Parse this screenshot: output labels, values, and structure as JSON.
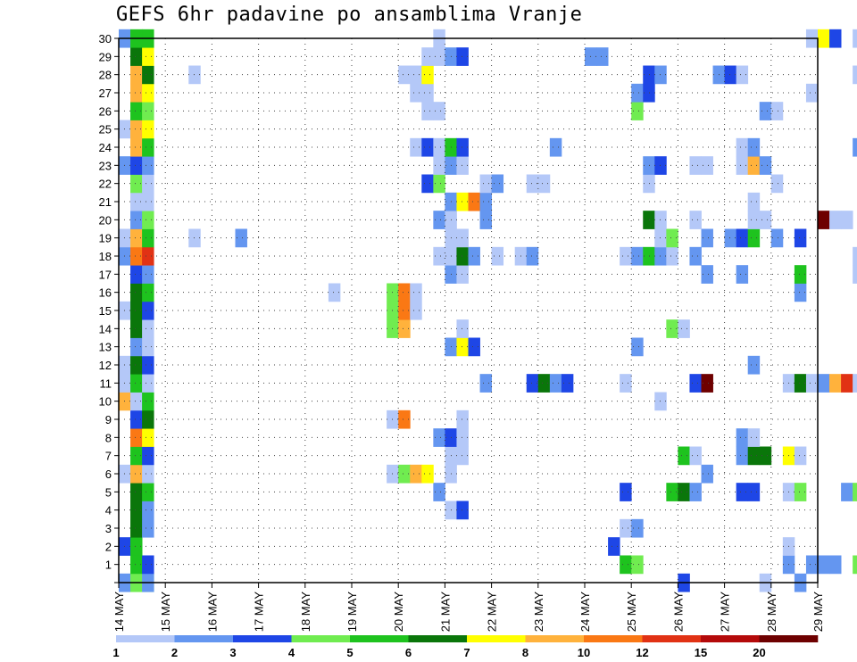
{
  "chart_data": {
    "type": "heatmap",
    "title": "GEFS 6hr padavine po ansamblima Vranje",
    "xlabel": "",
    "ylabel": "",
    "x_ticks": [
      "14 MAY",
      "15 MAY",
      "16 MAY",
      "17 MAY",
      "18 MAY",
      "19 MAY",
      "20 MAY",
      "21 MAY",
      "22 MAY",
      "23 MAY",
      "24 MAY",
      "25 MAY",
      "26 MAY",
      "27 MAY",
      "28 MAY",
      "29 MAY"
    ],
    "y_ticks": [
      "0",
      "1",
      "2",
      "3",
      "4",
      "5",
      "6",
      "7",
      "8",
      "9",
      "10",
      "11",
      "12",
      "13",
      "14",
      "15",
      "16",
      "17",
      "18",
      "19",
      "20",
      "21",
      "22",
      "23",
      "24",
      "25",
      "26",
      "27",
      "28",
      "29",
      "30"
    ],
    "x_range": [
      "14 MAY",
      "29 MAY"
    ],
    "y_range": [
      0,
      30
    ],
    "grid": true,
    "legend_levels": [
      "1",
      "2",
      "3",
      "4",
      "5",
      "6",
      "7",
      "8",
      "10",
      "12",
      "15",
      "20"
    ],
    "legend_colors": [
      "#b4c8f8",
      "#6496f0",
      "#1e46e6",
      "#70ec50",
      "#1ec31e",
      "#0a760a",
      "#ffff00",
      "#ffb23c",
      "#fa7814",
      "#e13214",
      "#b40a0a",
      "#6e0000"
    ],
    "note_cells": "Each cell = [member, column, level index]; column index in 6-hour steps from 14 MAY 06 UTC; level index 1..12 maps to legend_colors.",
    "cells": [
      [
        0,
        0,
        2
      ],
      [
        0,
        1,
        4
      ],
      [
        0,
        2,
        4
      ],
      [
        0,
        2,
        2
      ],
      [
        0,
        48,
        3
      ],
      [
        0,
        55,
        1
      ],
      [
        0,
        58,
        2
      ],
      [
        0,
        71,
        3
      ],
      [
        0,
        72,
        11
      ],
      [
        0,
        75,
        4
      ],
      [
        0,
        76,
        9
      ],
      [
        1,
        1,
        5
      ],
      [
        1,
        2,
        3
      ],
      [
        1,
        43,
        5
      ],
      [
        1,
        44,
        4
      ],
      [
        1,
        57,
        2
      ],
      [
        1,
        59,
        2
      ],
      [
        1,
        60,
        2
      ],
      [
        1,
        61,
        2
      ],
      [
        1,
        63,
        4
      ],
      [
        1,
        64,
        2
      ],
      [
        1,
        65,
        5
      ],
      [
        1,
        66,
        3
      ],
      [
        1,
        67,
        10
      ],
      [
        1,
        68,
        2
      ],
      [
        1,
        71,
        6
      ],
      [
        1,
        73,
        10
      ],
      [
        1,
        74,
        9
      ],
      [
        2,
        0,
        3
      ],
      [
        2,
        1,
        5
      ],
      [
        2,
        42,
        3
      ],
      [
        2,
        57,
        1
      ],
      [
        2,
        67,
        2
      ],
      [
        2,
        74,
        8
      ],
      [
        2,
        75,
        2
      ],
      [
        3,
        1,
        6
      ],
      [
        3,
        2,
        2
      ],
      [
        3,
        43,
        1
      ],
      [
        3,
        44,
        2
      ],
      [
        4,
        1,
        6
      ],
      [
        4,
        2,
        2
      ],
      [
        4,
        28,
        1
      ],
      [
        4,
        29,
        3
      ],
      [
        4,
        73,
        2
      ],
      [
        4,
        74,
        1
      ],
      [
        5,
        1,
        6
      ],
      [
        5,
        2,
        5
      ],
      [
        5,
        27,
        2
      ],
      [
        5,
        43,
        3
      ],
      [
        5,
        47,
        5
      ],
      [
        5,
        48,
        6
      ],
      [
        5,
        49,
        2
      ],
      [
        5,
        53,
        3
      ],
      [
        5,
        54,
        3
      ],
      [
        5,
        57,
        1
      ],
      [
        5,
        58,
        4
      ],
      [
        5,
        62,
        2
      ],
      [
        5,
        63,
        4
      ],
      [
        6,
        0,
        1
      ],
      [
        6,
        1,
        8
      ],
      [
        6,
        2,
        1
      ],
      [
        6,
        23,
        1
      ],
      [
        6,
        24,
        4
      ],
      [
        6,
        25,
        8
      ],
      [
        6,
        26,
        7
      ],
      [
        6,
        28,
        1
      ],
      [
        6,
        50,
        2
      ],
      [
        7,
        1,
        5
      ],
      [
        7,
        2,
        3
      ],
      [
        7,
        28,
        1
      ],
      [
        7,
        29,
        1
      ],
      [
        7,
        48,
        5
      ],
      [
        7,
        49,
        1
      ],
      [
        7,
        53,
        2
      ],
      [
        7,
        54,
        6
      ],
      [
        7,
        55,
        6
      ],
      [
        7,
        57,
        7
      ],
      [
        7,
        58,
        1
      ],
      [
        7,
        68,
        8
      ],
      [
        7,
        69,
        9
      ],
      [
        7,
        70,
        12
      ],
      [
        7,
        73,
        3
      ],
      [
        7,
        74,
        5
      ],
      [
        8,
        1,
        9
      ],
      [
        8,
        2,
        7
      ],
      [
        8,
        27,
        2
      ],
      [
        8,
        28,
        3
      ],
      [
        8,
        29,
        1
      ],
      [
        8,
        53,
        2
      ],
      [
        8,
        54,
        1
      ],
      [
        8,
        65,
        3
      ],
      [
        8,
        66,
        1
      ],
      [
        8,
        67,
        1
      ],
      [
        9,
        1,
        3
      ],
      [
        9,
        2,
        6
      ],
      [
        9,
        23,
        1
      ],
      [
        9,
        24,
        9
      ],
      [
        9,
        29,
        1
      ],
      [
        9,
        69,
        1
      ],
      [
        9,
        75,
        2
      ],
      [
        10,
        0,
        8
      ],
      [
        10,
        1,
        1
      ],
      [
        10,
        2,
        5
      ],
      [
        10,
        46,
        1
      ],
      [
        11,
        0,
        1
      ],
      [
        11,
        1,
        5
      ],
      [
        11,
        2,
        1
      ],
      [
        11,
        31,
        2
      ],
      [
        11,
        35,
        3
      ],
      [
        11,
        36,
        6
      ],
      [
        11,
        37,
        2
      ],
      [
        11,
        38,
        3
      ],
      [
        11,
        43,
        1
      ],
      [
        11,
        49,
        3
      ],
      [
        11,
        50,
        12
      ],
      [
        11,
        57,
        1
      ],
      [
        11,
        58,
        6
      ],
      [
        11,
        59,
        1
      ],
      [
        11,
        60,
        2
      ],
      [
        11,
        61,
        8
      ],
      [
        11,
        62,
        10
      ],
      [
        11,
        63,
        1
      ],
      [
        11,
        68,
        4
      ],
      [
        11,
        69,
        6
      ],
      [
        11,
        70,
        7
      ],
      [
        11,
        71,
        6
      ],
      [
        11,
        72,
        5
      ],
      [
        12,
        0,
        1
      ],
      [
        12,
        1,
        6
      ],
      [
        12,
        2,
        3
      ],
      [
        12,
        54,
        2
      ],
      [
        13,
        1,
        2
      ],
      [
        13,
        2,
        1
      ],
      [
        13,
        28,
        2
      ],
      [
        13,
        29,
        7
      ],
      [
        13,
        30,
        3
      ],
      [
        13,
        44,
        2
      ],
      [
        14,
        1,
        6
      ],
      [
        14,
        2,
        1
      ],
      [
        14,
        23,
        4
      ],
      [
        14,
        24,
        8
      ],
      [
        14,
        29,
        1
      ],
      [
        14,
        47,
        4
      ],
      [
        14,
        48,
        1
      ],
      [
        14,
        73,
        3
      ],
      [
        14,
        74,
        1
      ],
      [
        15,
        0,
        1
      ],
      [
        15,
        1,
        6
      ],
      [
        15,
        2,
        3
      ],
      [
        15,
        23,
        4
      ],
      [
        15,
        24,
        9
      ],
      [
        15,
        25,
        1
      ],
      [
        15,
        69,
        1
      ],
      [
        15,
        73,
        2
      ],
      [
        15,
        74,
        1
      ],
      [
        16,
        1,
        6
      ],
      [
        16,
        2,
        5
      ],
      [
        16,
        18,
        1
      ],
      [
        16,
        23,
        4
      ],
      [
        16,
        24,
        9
      ],
      [
        16,
        25,
        1
      ],
      [
        16,
        58,
        2
      ],
      [
        16,
        65,
        1
      ],
      [
        16,
        69,
        1
      ],
      [
        16,
        70,
        3
      ],
      [
        16,
        71,
        1
      ],
      [
        17,
        1,
        3
      ],
      [
        17,
        2,
        2
      ],
      [
        17,
        28,
        2
      ],
      [
        17,
        29,
        1
      ],
      [
        17,
        50,
        2
      ],
      [
        17,
        53,
        2
      ],
      [
        17,
        58,
        5
      ],
      [
        17,
        63,
        1
      ],
      [
        17,
        64,
        9
      ],
      [
        17,
        65,
        10
      ],
      [
        18,
        0,
        2
      ],
      [
        18,
        1,
        9
      ],
      [
        18,
        2,
        10
      ],
      [
        18,
        27,
        1
      ],
      [
        18,
        28,
        1
      ],
      [
        18,
        29,
        6
      ],
      [
        18,
        30,
        2
      ],
      [
        18,
        32,
        1
      ],
      [
        18,
        34,
        1
      ],
      [
        18,
        35,
        2
      ],
      [
        18,
        43,
        1
      ],
      [
        18,
        44,
        2
      ],
      [
        18,
        45,
        5
      ],
      [
        18,
        46,
        2
      ],
      [
        18,
        47,
        1
      ],
      [
        18,
        49,
        2
      ],
      [
        18,
        63,
        1
      ],
      [
        18,
        68,
        11
      ],
      [
        19,
        0,
        1
      ],
      [
        19,
        1,
        8
      ],
      [
        19,
        2,
        5
      ],
      [
        19,
        6,
        1
      ],
      [
        19,
        10,
        2
      ],
      [
        19,
        28,
        1
      ],
      [
        19,
        29,
        1
      ],
      [
        19,
        46,
        1
      ],
      [
        19,
        47,
        4
      ],
      [
        19,
        50,
        2
      ],
      [
        19,
        52,
        2
      ],
      [
        19,
        53,
        3
      ],
      [
        19,
        54,
        5
      ],
      [
        19,
        56,
        2
      ],
      [
        19,
        58,
        3
      ],
      [
        19,
        72,
        1
      ],
      [
        19,
        73,
        9
      ],
      [
        19,
        74,
        6
      ],
      [
        20,
        1,
        2
      ],
      [
        20,
        2,
        4
      ],
      [
        20,
        27,
        2
      ],
      [
        20,
        28,
        1
      ],
      [
        20,
        31,
        2
      ],
      [
        20,
        45,
        6
      ],
      [
        20,
        46,
        1
      ],
      [
        20,
        49,
        1
      ],
      [
        20,
        54,
        1
      ],
      [
        20,
        55,
        1
      ],
      [
        20,
        60,
        12
      ],
      [
        20,
        61,
        1
      ],
      [
        20,
        62,
        1
      ],
      [
        20,
        66,
        3
      ],
      [
        20,
        67,
        2
      ],
      [
        20,
        68,
        1
      ],
      [
        20,
        72,
        1
      ],
      [
        20,
        73,
        4
      ],
      [
        21,
        1,
        1
      ],
      [
        21,
        2,
        1
      ],
      [
        21,
        28,
        2
      ],
      [
        21,
        29,
        7
      ],
      [
        21,
        30,
        9
      ],
      [
        21,
        31,
        2
      ],
      [
        21,
        54,
        1
      ],
      [
        22,
        1,
        4
      ],
      [
        22,
        2,
        1
      ],
      [
        22,
        26,
        3
      ],
      [
        22,
        27,
        4
      ],
      [
        22,
        31,
        1
      ],
      [
        22,
        32,
        2
      ],
      [
        22,
        35,
        1
      ],
      [
        22,
        36,
        1
      ],
      [
        22,
        45,
        1
      ],
      [
        22,
        56,
        1
      ],
      [
        22,
        72,
        4
      ],
      [
        22,
        73,
        9
      ],
      [
        22,
        74,
        2
      ],
      [
        23,
        0,
        2
      ],
      [
        23,
        1,
        3
      ],
      [
        23,
        2,
        2
      ],
      [
        23,
        27,
        1
      ],
      [
        23,
        28,
        2
      ],
      [
        23,
        29,
        1
      ],
      [
        23,
        45,
        2
      ],
      [
        23,
        46,
        3
      ],
      [
        23,
        49,
        1
      ],
      [
        23,
        50,
        1
      ],
      [
        23,
        53,
        1
      ],
      [
        23,
        54,
        8
      ],
      [
        23,
        55,
        2
      ],
      [
        23,
        69,
        1
      ],
      [
        23,
        73,
        1
      ],
      [
        24,
        1,
        8
      ],
      [
        24,
        2,
        5
      ],
      [
        24,
        25,
        1
      ],
      [
        24,
        26,
        3
      ],
      [
        24,
        27,
        1
      ],
      [
        24,
        28,
        5
      ],
      [
        24,
        29,
        3
      ],
      [
        24,
        37,
        2
      ],
      [
        24,
        53,
        1
      ],
      [
        24,
        54,
        2
      ],
      [
        24,
        63,
        2
      ],
      [
        24,
        64,
        3
      ],
      [
        25,
        0,
        1
      ],
      [
        25,
        1,
        8
      ],
      [
        25,
        2,
        7
      ],
      [
        25,
        74,
        4
      ],
      [
        25,
        75,
        5
      ],
      [
        26,
        1,
        5
      ],
      [
        26,
        2,
        4
      ],
      [
        26,
        26,
        1
      ],
      [
        26,
        27,
        1
      ],
      [
        26,
        44,
        4
      ],
      [
        26,
        55,
        2
      ],
      [
        26,
        56,
        1
      ],
      [
        27,
        1,
        8
      ],
      [
        27,
        2,
        7
      ],
      [
        27,
        25,
        1
      ],
      [
        27,
        26,
        1
      ],
      [
        27,
        44,
        2
      ],
      [
        27,
        45,
        3
      ],
      [
        27,
        59,
        1
      ],
      [
        28,
        1,
        8
      ],
      [
        28,
        2,
        6
      ],
      [
        28,
        6,
        1
      ],
      [
        28,
        24,
        1
      ],
      [
        28,
        25,
        1
      ],
      [
        28,
        26,
        7
      ],
      [
        28,
        45,
        3
      ],
      [
        28,
        46,
        2
      ],
      [
        28,
        51,
        2
      ],
      [
        28,
        52,
        3
      ],
      [
        28,
        53,
        1
      ],
      [
        28,
        63,
        1
      ],
      [
        28,
        66,
        1
      ],
      [
        28,
        67,
        1
      ],
      [
        28,
        68,
        1
      ],
      [
        28,
        69,
        5
      ],
      [
        28,
        70,
        3
      ],
      [
        29,
        1,
        6
      ],
      [
        29,
        2,
        7
      ],
      [
        29,
        26,
        1
      ],
      [
        29,
        27,
        1
      ],
      [
        29,
        28,
        2
      ],
      [
        29,
        29,
        3
      ],
      [
        29,
        40,
        2
      ],
      [
        29,
        41,
        2
      ],
      [
        29,
        68,
        5
      ],
      [
        29,
        75,
        1
      ],
      [
        30,
        0,
        2
      ],
      [
        30,
        1,
        5
      ],
      [
        30,
        2,
        5
      ],
      [
        30,
        27,
        1
      ],
      [
        30,
        59,
        1
      ],
      [
        30,
        60,
        7
      ],
      [
        30,
        61,
        3
      ],
      [
        30,
        63,
        1
      ],
      [
        30,
        64,
        9
      ],
      [
        30,
        65,
        1
      ],
      [
        30,
        66,
        5
      ],
      [
        30,
        67,
        8
      ],
      [
        30,
        68,
        4
      ],
      [
        30,
        69,
        8
      ],
      [
        30,
        70,
        1
      ],
      [
        30,
        71,
        1
      ],
      [
        30,
        72,
        1
      ],
      [
        30,
        73,
        2
      ],
      [
        30,
        74,
        3
      ]
    ]
  }
}
